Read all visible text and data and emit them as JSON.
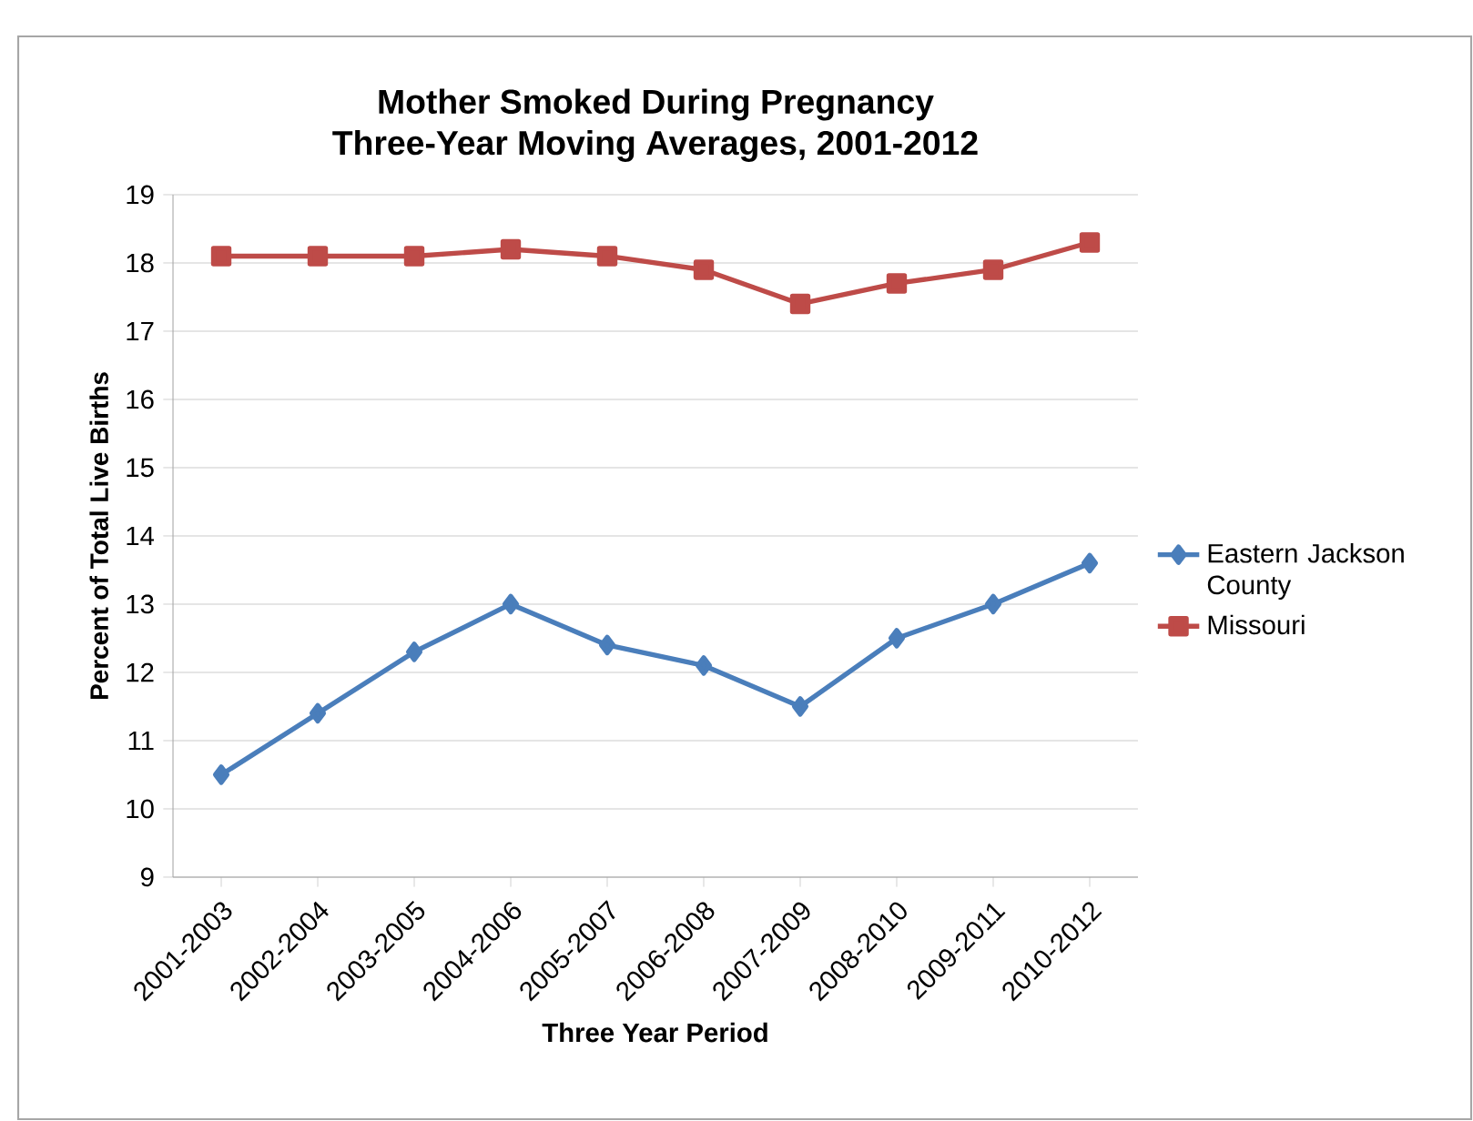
{
  "chart_data": {
    "type": "line",
    "title": "Mother Smoked During Pregnancy",
    "subtitle": "Three-Year Moving Averages, 2001-2012",
    "xlabel": "Three Year Period",
    "ylabel": "Percent of Total Live Births",
    "categories": [
      "2001-2003",
      "2002-2004",
      "2003-2005",
      "2004-2006",
      "2005-2007",
      "2006-2008",
      "2007-2009",
      "2008-2010",
      "2009-2011",
      "2010-2012"
    ],
    "series": [
      {
        "name": "Eastern Jackson County",
        "color": "#4a7ebb",
        "marker": "diamond",
        "values": [
          10.5,
          11.4,
          12.3,
          13.0,
          12.4,
          12.1,
          11.5,
          12.5,
          13.0,
          13.6
        ]
      },
      {
        "name": "Missouri",
        "color": "#be4b48",
        "marker": "square",
        "values": [
          18.1,
          18.1,
          18.1,
          18.2,
          18.1,
          17.9,
          17.4,
          17.7,
          17.9,
          18.3
        ]
      }
    ],
    "ylim": [
      9,
      19
    ],
    "yticks": [
      9,
      10,
      11,
      12,
      13,
      14,
      15,
      16,
      17,
      18,
      19
    ],
    "grid": "y",
    "legend": "right"
  }
}
